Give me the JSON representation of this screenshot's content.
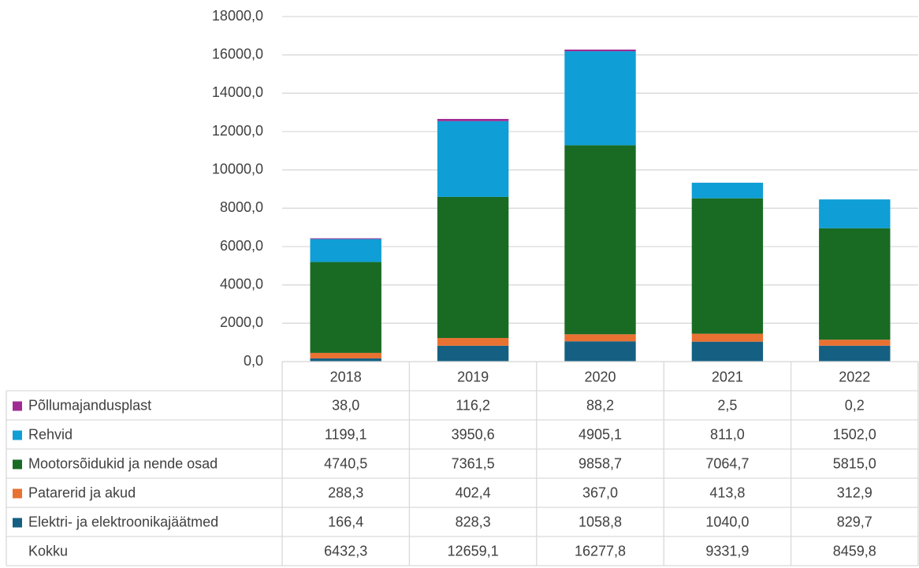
{
  "chart_data": {
    "type": "stacked_bar",
    "categories": [
      "2018",
      "2019",
      "2020",
      "2021",
      "2022"
    ],
    "series": [
      {
        "name": "Põllumajandusplast",
        "color": "#a02b93",
        "values": [
          38.0,
          116.2,
          88.2,
          2.5,
          0.2
        ],
        "value_labels": [
          "38,0",
          "116,2",
          "88,2",
          "2,5",
          "0,2"
        ]
      },
      {
        "name": "Rehvid",
        "color": "#0f9ed5",
        "values": [
          1199.1,
          3950.6,
          4905.1,
          811.0,
          1502.0
        ],
        "value_labels": [
          "1199,1",
          "3950,6",
          "4905,1",
          "811,0",
          "1502,0"
        ]
      },
      {
        "name": "Mootorsõidukid ja nende osad",
        "color": "#196b24",
        "values": [
          4740.5,
          7361.5,
          9858.7,
          7064.7,
          5815.0
        ],
        "value_labels": [
          "4740,5",
          "7361,5",
          "9858,7",
          "7064,7",
          "5815,0"
        ]
      },
      {
        "name": "Patarerid ja akud",
        "color": "#e97132",
        "values": [
          288.3,
          402.4,
          367.0,
          413.8,
          312.9
        ],
        "value_labels": [
          "288,3",
          "402,4",
          "367,0",
          "413,8",
          "312,9"
        ]
      },
      {
        "name": "Elektri- ja elektroonikajäätmed",
        "color": "#156082",
        "values": [
          166.4,
          828.3,
          1058.8,
          1040.0,
          829.7
        ],
        "value_labels": [
          "166,4",
          "828,3",
          "1058,8",
          "1040,0",
          "829,7"
        ]
      }
    ],
    "total": {
      "name": "Kokku",
      "values": [
        6432.3,
        12659.1,
        16277.8,
        9331.9,
        8459.8
      ],
      "value_labels": [
        "6432,3",
        "12659,1",
        "16277,8",
        "9331,9",
        "8459,8"
      ]
    },
    "ylim": [
      0,
      18000
    ],
    "yticks": [
      {
        "value": 0,
        "label": "0,0"
      },
      {
        "value": 2000,
        "label": "2000,0"
      },
      {
        "value": 4000,
        "label": "4000,0"
      },
      {
        "value": 6000,
        "label": "6000,0"
      },
      {
        "value": 8000,
        "label": "8000,0"
      },
      {
        "value": 10000,
        "label": "10000,0"
      },
      {
        "value": 12000,
        "label": "12000,0"
      },
      {
        "value": 14000,
        "label": "14000,0"
      },
      {
        "value": 16000,
        "label": "16000,0"
      },
      {
        "value": 18000,
        "label": "18000,0"
      }
    ],
    "grid": true
  }
}
